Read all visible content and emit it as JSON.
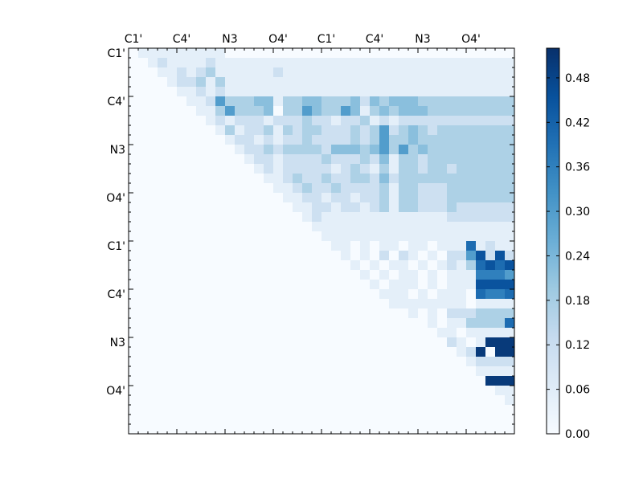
{
  "chart_data": {
    "type": "heatmap",
    "title": "",
    "xlabel": "",
    "ylabel": "",
    "colormap": "Blues",
    "n": 40,
    "x_tick_labels": [
      "C1'",
      "C4'",
      "N3",
      "O4'",
      "C1'",
      "C4'",
      "N3",
      "O4'"
    ],
    "y_tick_labels": [
      "C1'",
      "C4'",
      "N3",
      "O4'",
      "C1'",
      "C4'",
      "N3",
      "O4'"
    ],
    "label_index_positions": [
      0,
      5,
      10,
      15,
      20,
      25,
      30,
      35
    ],
    "colorbar": {
      "min": 0.0,
      "max": 0.52,
      "ticks": [
        "0.00",
        "0.06",
        "0.12",
        "0.18",
        "0.24",
        "0.30",
        "0.36",
        "0.42",
        "0.48"
      ]
    },
    "rows": [
      "0111111111000000000000000000000000000000",
      "0012111121111111111111111111111111111111",
      "0001121231111112111111111111111111111111",
      "0000122313111111111111111111111111111111",
      "0000011212111111111111111111111111111111",
      "0000001125333441334433342434443333333333",
      "0000000113533340335433541343444333333333",
      "0000000012122212223221223121222222222222",
      "0000000001312231323322232352343233333333",
      "0000000000122121223222232353343333333333",
      "0000000000012232333324443453534333333333",
      "0000000000001221222232223241332333333333",
      "0000000000000121222221232131332332333333",
      "0000000000000011232232233242333333333333",
      "0000000000000001123223222231332223333333",
      "0000000000000000112212212231332223333333",
      "0000000000000000011221221231332223222222",
      "0000000000000000001211111111111112222222",
      "0000000000000000000111111111111111111111",
      "0000000000000000000011111111111111111111",
      "0000000000000000000001101011011011171211",
      "0000000000000000000000101020210102258282",
      "0000000000000000000000010101101012137878",
      "0000000000000000000000001010110101116665",
      "0000000000000000000000000101110101118888",
      "0000000000000000000000000011101011107667",
      "0000000000000000000000000001111111101111",
      "0000000000000000000000000000010102223333",
      "0000000000000000000000000000000101133337",
      "0000000000000000000000000000000011011111",
      "0000000000000000000000000000000002101999",
      "0000000000000000000000000000000000129099",
      "0000000000000000000000000000000000012222",
      "0000000000000000000000000000000000001111",
      "0000000000000000000000000000000000000999",
      "0000000000000000000000000000000000000011",
      "0000000000000000000000000000000000000001",
      "0000000000000000000000000000000000000000",
      "0000000000000000000000000000000000000000",
      "0000000000000000000000000000000000000000"
    ],
    "level_values": [
      0.0,
      0.05,
      0.11,
      0.17,
      0.22,
      0.3,
      0.36,
      0.4,
      0.45,
      0.5
    ]
  }
}
